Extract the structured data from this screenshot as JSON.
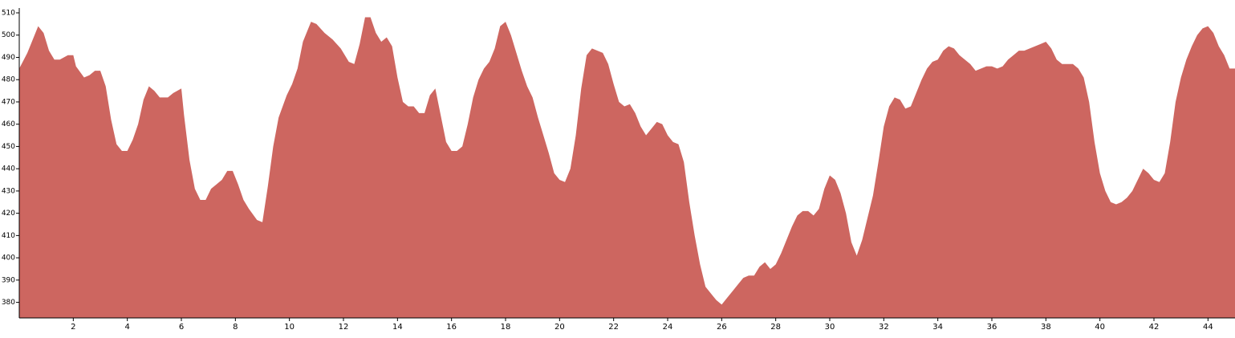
{
  "chart_data": {
    "type": "area",
    "color": "#cd6660",
    "x": [
      0,
      0.3,
      0.7,
      0.9,
      1.1,
      1.3,
      1.5,
      1.8,
      2.0,
      2.1,
      2.4,
      2.6,
      2.8,
      3.0,
      3.2,
      3.4,
      3.6,
      3.8,
      4.0,
      4.2,
      4.4,
      4.6,
      4.8,
      5.0,
      5.2,
      5.5,
      5.7,
      6.0,
      6.1,
      6.3,
      6.5,
      6.7,
      6.9,
      7.1,
      7.3,
      7.5,
      7.7,
      7.9,
      8.1,
      8.3,
      8.5,
      8.8,
      9.0,
      9.2,
      9.4,
      9.6,
      9.9,
      10.1,
      10.3,
      10.5,
      10.8,
      11.0,
      11.3,
      11.6,
      11.9,
      12.2,
      12.4,
      12.6,
      12.8,
      13.0,
      13.2,
      13.4,
      13.6,
      13.8,
      14.0,
      14.2,
      14.4,
      14.6,
      14.8,
      15.0,
      15.2,
      15.4,
      15.6,
      15.8,
      16.0,
      16.2,
      16.4,
      16.6,
      16.8,
      17.0,
      17.2,
      17.4,
      17.6,
      17.8,
      18.0,
      18.2,
      18.4,
      18.6,
      18.8,
      19.0,
      19.2,
      19.4,
      19.6,
      19.8,
      20.0,
      20.2,
      20.4,
      20.6,
      20.8,
      21.0,
      21.2,
      21.4,
      21.6,
      21.8,
      22.0,
      22.2,
      22.4,
      22.6,
      22.8,
      23.0,
      23.2,
      23.4,
      23.6,
      23.8,
      24.0,
      24.2,
      24.4,
      24.6,
      24.8,
      25.0,
      25.2,
      25.4,
      25.6,
      25.8,
      26.0,
      26.2,
      26.4,
      26.6,
      26.8,
      27.0,
      27.2,
      27.4,
      27.6,
      27.8,
      28.0,
      28.2,
      28.4,
      28.6,
      28.8,
      29.0,
      29.2,
      29.4,
      29.6,
      29.8,
      30.0,
      30.2,
      30.4,
      30.6,
      30.8,
      31.0,
      31.2,
      31.4,
      31.6,
      31.8,
      32.0,
      32.2,
      32.4,
      32.6,
      32.8,
      33.0,
      33.2,
      33.4,
      33.6,
      33.8,
      34.0,
      34.2,
      34.4,
      34.6,
      34.8,
      35.0,
      35.2,
      35.4,
      35.6,
      35.8,
      36.0,
      36.2,
      36.4,
      36.6,
      36.8,
      37.0,
      37.2,
      37.4,
      37.6,
      37.8,
      38.0,
      38.2,
      38.4,
      38.6,
      38.8,
      39.0,
      39.2,
      39.4,
      39.6,
      39.8,
      40.0,
      40.2,
      40.4,
      40.6,
      40.8,
      41.0,
      41.2,
      41.4,
      41.6,
      41.8,
      42.0,
      42.2,
      42.4,
      42.6,
      42.8,
      43.0,
      43.2,
      43.4,
      43.6,
      43.8,
      44.0,
      44.2,
      44.4,
      44.6,
      44.8,
      45.0
    ],
    "values": [
      485,
      492,
      504,
      501,
      493,
      489,
      489,
      491,
      491,
      486,
      481,
      482,
      484,
      484,
      477,
      462,
      451,
      448,
      448,
      453,
      460,
      471,
      477,
      475,
      472,
      472,
      474,
      476,
      464,
      444,
      431,
      426,
      426,
      431,
      433,
      435,
      439,
      439,
      433,
      426,
      422,
      417,
      416,
      432,
      450,
      463,
      473,
      478,
      485,
      497,
      506,
      505,
      501,
      498,
      494,
      488,
      487,
      496,
      508,
      508,
      501,
      497,
      499,
      495,
      481,
      470,
      468,
      468,
      465,
      465,
      473,
      476,
      464,
      452,
      448,
      448,
      450,
      460,
      472,
      480,
      485,
      488,
      494,
      504,
      506,
      500,
      492,
      484,
      477,
      472,
      463,
      455,
      447,
      438,
      435,
      434,
      440,
      455,
      476,
      491,
      494,
      493,
      492,
      487,
      478,
      470,
      468,
      469,
      465,
      459,
      455,
      458,
      461,
      460,
      455,
      452,
      451,
      443,
      425,
      410,
      397,
      387,
      384,
      381,
      379,
      382,
      385,
      388,
      391,
      392,
      392,
      396,
      398,
      395,
      397,
      402,
      408,
      414,
      419,
      421,
      421,
      419,
      422,
      431,
      437,
      435,
      429,
      420,
      407,
      401,
      408,
      418,
      428,
      443,
      459,
      468,
      472,
      471,
      467,
      468,
      474,
      480,
      485,
      488,
      489,
      493,
      495,
      494,
      491,
      489,
      487,
      484,
      485,
      486,
      486,
      485,
      486,
      489,
      491,
      493,
      493,
      494,
      495,
      496,
      497,
      494,
      489,
      487,
      487,
      487,
      485,
      481,
      470,
      452,
      438,
      430,
      425,
      424,
      425,
      427,
      430,
      435,
      440,
      438,
      435,
      434,
      438,
      452,
      470,
      481,
      489,
      495,
      500,
      503,
      504,
      501,
      495,
      491,
      485,
      485
    ],
    "xlim": [
      0,
      45
    ],
    "xticks": [
      2,
      4,
      6,
      8,
      10,
      12,
      14,
      16,
      18,
      20,
      22,
      24,
      26,
      28,
      30,
      32,
      34,
      36,
      38,
      40,
      42,
      44
    ],
    "ylim": [
      373,
      510
    ],
    "yticks": [
      380,
      390,
      400,
      410,
      420,
      430,
      440,
      450,
      460,
      470,
      480,
      490,
      500,
      510
    ]
  }
}
